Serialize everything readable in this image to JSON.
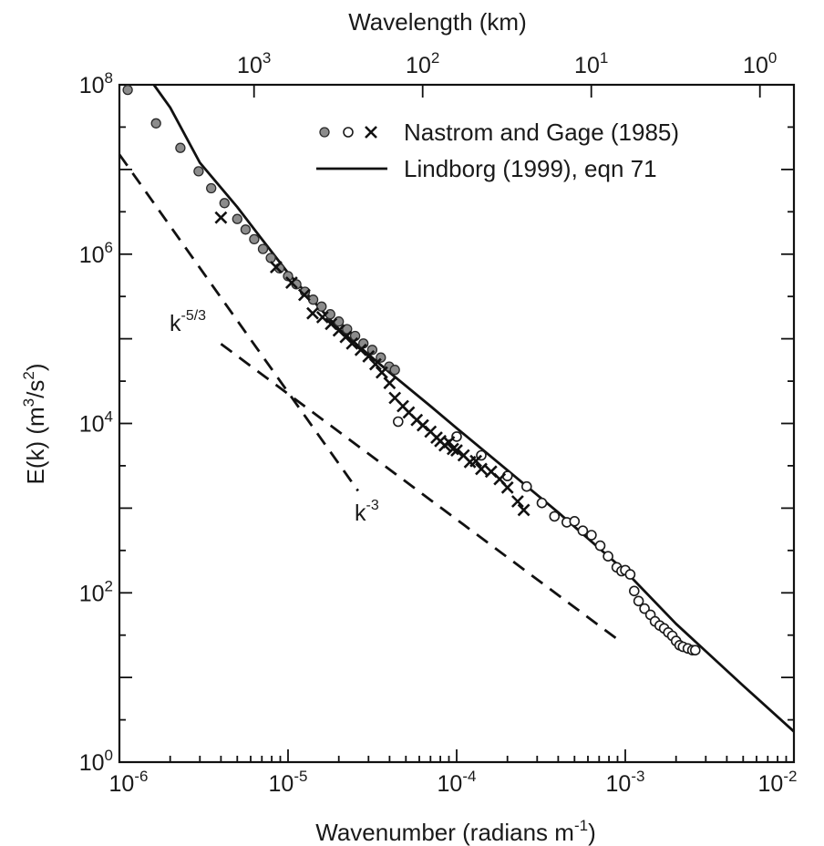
{
  "chart_data": {
    "type": "scatter",
    "xlabel": "Wavenumber  (radians m-1)",
    "ylabel": "E(k) (m3/s2)",
    "top_axis_label": "Wavelength  (km)",
    "x_scale": "log",
    "y_scale": "log",
    "xlim": [
      1e-06,
      0.01
    ],
    "ylim": [
      1,
      100000000.0
    ],
    "x_ticks": [
      {
        "value": 1e-06,
        "base": "10",
        "exp": "-6"
      },
      {
        "value": 1e-05,
        "base": "10",
        "exp": "-5"
      },
      {
        "value": 0.0001,
        "base": "10",
        "exp": "-4"
      },
      {
        "value": 0.001,
        "base": "10",
        "exp": "-3"
      },
      {
        "value": 0.01,
        "base": "10",
        "exp": "-2"
      }
    ],
    "y_ticks": [
      {
        "value": 1,
        "base": "10",
        "exp": "0"
      },
      {
        "value": 100,
        "base": "10",
        "exp": "2"
      },
      {
        "value": 10000,
        "base": "10",
        "exp": "4"
      },
      {
        "value": 1000000,
        "base": "10",
        "exp": "6"
      },
      {
        "value": 100000000,
        "base": "10",
        "exp": "8"
      }
    ],
    "top_ticks": [
      {
        "wavelength_km": 1000,
        "base": "10",
        "exp": "3"
      },
      {
        "wavelength_km": 100,
        "base": "10",
        "exp": "2"
      },
      {
        "wavelength_km": 10,
        "base": "10",
        "exp": "1"
      },
      {
        "wavelength_km": 1,
        "base": "10",
        "exp": "0"
      }
    ],
    "grid": false,
    "legend_position": "top-right",
    "legend": [
      {
        "label": "Nastrom and Gage (1985)",
        "markers": [
          "filled-circle",
          "open-circle",
          "cross"
        ]
      },
      {
        "label": "Lindborg (1999), eqn 71",
        "markers": [
          "solid-line"
        ]
      }
    ],
    "annotations": [
      {
        "base": "k",
        "exp": "-5/3"
      },
      {
        "base": "k",
        "exp": "-3"
      }
    ],
    "series": [
      {
        "name": "Lindborg (1999), eqn 71",
        "style": "solid-line",
        "points": [
          [
            1.6e-06,
            100000000.0
          ],
          [
            2e-06,
            54000000.0
          ],
          [
            3e-06,
            12000000.0
          ],
          [
            5e-06,
            3600000.0
          ],
          [
            7e-06,
            1500000.0
          ],
          [
            1e-05,
            600000.0
          ],
          [
            2e-05,
            130000.0
          ],
          [
            4e-05,
            40000.0
          ],
          [
            7e-05,
            16000.0
          ],
          [
            0.0001,
            8800.0
          ],
          [
            0.0002,
            2800.0
          ],
          [
            0.0004,
            890.0
          ],
          [
            0.001,
            180.0
          ],
          [
            0.002,
            43.0
          ],
          [
            0.005,
            8.0
          ],
          [
            0.01,
            2.3
          ]
        ]
      },
      {
        "name": "Nastrom and Gage (1985) filled",
        "style": "filled-circle",
        "points": [
          [
            1.12e-06,
            87000000.0
          ],
          [
            1.65e-06,
            35000000.0
          ],
          [
            2.3e-06,
            18000000.0
          ],
          [
            2.95e-06,
            9500000.0
          ],
          [
            3.5e-06,
            6000000.0
          ],
          [
            4.2e-06,
            4000000.0
          ],
          [
            5e-06,
            2600000.0
          ],
          [
            5.6e-06,
            1950000.0
          ],
          [
            6.3e-06,
            1500000.0
          ],
          [
            7.1e-06,
            1150000.0
          ],
          [
            7.9e-06,
            900000.0
          ],
          [
            8.9e-06,
            680000.0
          ],
          [
            1e-05,
            550000.0
          ],
          [
            1.12e-05,
            440000.0
          ],
          [
            1.26e-05,
            360000.0
          ],
          [
            1.41e-05,
            290000.0
          ],
          [
            1.58e-05,
            240000.0
          ],
          [
            1.78e-05,
            195000.0
          ],
          [
            2e-05,
            160000.0
          ],
          [
            2.24e-05,
            130000.0
          ],
          [
            2.5e-05,
            108000.0
          ],
          [
            2.8e-05,
            88000.0
          ],
          [
            3.16e-05,
            74000.0
          ],
          [
            3.55e-05,
            60000.0
          ],
          [
            3.98e-05,
            47000.0
          ],
          [
            4.3e-05,
            43000.0
          ]
        ]
      },
      {
        "name": "Nastrom and Gage (1985) open",
        "style": "open-circle",
        "points": [
          [
            4.5e-05,
            10500.0
          ],
          [
            0.0001,
            7000.0
          ],
          [
            0.00014,
            4200.0
          ],
          [
            0.0002,
            2400.0
          ],
          [
            0.00026,
            1800.0
          ],
          [
            0.00032,
            1150.0
          ],
          [
            0.00038,
            800.0
          ],
          [
            0.00045,
            680.0
          ],
          [
            0.0005,
            700.0
          ],
          [
            0.00056,
            540.0
          ],
          [
            0.00063,
            480.0
          ],
          [
            0.00071,
            360.0
          ],
          [
            0.00079,
            270.0
          ],
          [
            0.00089,
            200.0
          ],
          [
            0.00095,
            180.0
          ],
          [
            0.001,
            185.0
          ],
          [
            0.00107,
            165.0
          ],
          [
            0.00113,
            105.0
          ],
          [
            0.0012,
            80.0
          ],
          [
            0.0013,
            65.0
          ],
          [
            0.00141,
            55.0
          ],
          [
            0.0015,
            46.0
          ],
          [
            0.0016,
            41.0
          ],
          [
            0.0017,
            38.0
          ],
          [
            0.0018,
            34.0
          ],
          [
            0.0019,
            31.0
          ],
          [
            0.002,
            27.0
          ],
          [
            0.0021,
            24.0
          ],
          [
            0.0022,
            23.0
          ],
          [
            0.00235,
            22.0
          ],
          [
            0.0025,
            21.0
          ],
          [
            0.0026,
            21.0
          ]
        ]
      },
      {
        "name": "Nastrom and Gage (1985) cross",
        "style": "cross",
        "points": [
          [
            4e-06,
            2700000.0
          ],
          [
            8.5e-06,
            700000.0
          ],
          [
            1.05e-05,
            460000.0
          ],
          [
            1.25e-05,
            330000.0
          ],
          [
            1.4e-05,
            200000.0
          ],
          [
            1.6e-05,
            180000.0
          ],
          [
            1.8e-05,
            150000.0
          ],
          [
            2e-05,
            125000.0
          ],
          [
            2.2e-05,
            105000.0
          ],
          [
            2.4e-05,
            88000.0
          ],
          [
            2.7e-05,
            74000.0
          ],
          [
            3e-05,
            62000.0
          ],
          [
            3.3e-05,
            50000.0
          ],
          [
            3.6e-05,
            40000.0
          ],
          [
            4e-05,
            30000.0
          ],
          [
            4.3e-05,
            20000.0
          ],
          [
            4.8e-05,
            16000.0
          ],
          [
            5.2e-05,
            13500.0
          ],
          [
            5.8e-05,
            11000.0
          ],
          [
            6.3e-05,
            9500.0
          ],
          [
            7e-05,
            8000.0
          ],
          [
            7.6e-05,
            6800.0
          ],
          [
            8e-05,
            6200.0
          ],
          [
            8.5e-05,
            5500.0
          ],
          [
            9e-05,
            6000.0
          ],
          [
            9.5e-05,
            5000.0
          ],
          [
            0.0001,
            4800.0
          ],
          [
            0.00011,
            4200.0
          ],
          [
            0.00012,
            3500.0
          ],
          [
            0.00013,
            3600.0
          ],
          [
            0.00014,
            2900.0
          ],
          [
            0.00016,
            2700.0
          ],
          [
            0.00018,
            2200.0
          ],
          [
            0.0002,
            1750.0
          ],
          [
            0.00023,
            1200.0
          ],
          [
            0.00025,
            950.0
          ]
        ]
      },
      {
        "name": "k-3",
        "style": "dashed-line",
        "points": [
          [
            1e-06,
            15000000.0
          ],
          [
            2.6e-05,
            1600.0
          ]
        ]
      },
      {
        "name": "k-5/3",
        "style": "dashed-line",
        "points": [
          [
            4e-06,
            87000.0
          ],
          [
            0.00095,
            26.0
          ]
        ]
      }
    ]
  }
}
